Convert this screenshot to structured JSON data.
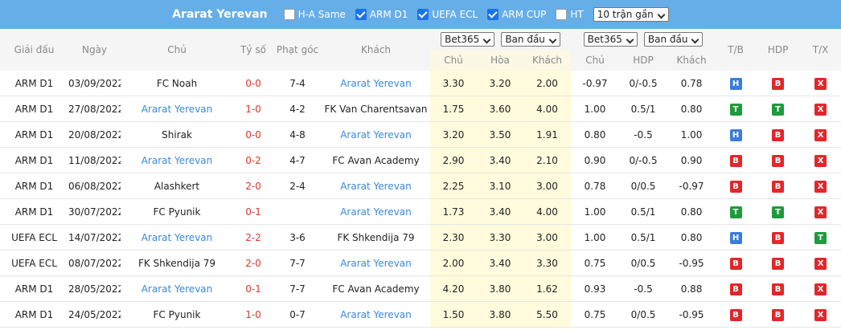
{
  "header": {
    "title": "Ararat Yerevan",
    "filters": [
      {
        "label": "H-A Same",
        "checked": false
      },
      {
        "label": "ARM D1",
        "checked": true
      },
      {
        "label": "UEFA ECL",
        "checked": true
      },
      {
        "label": "ARM CUP",
        "checked": true
      },
      {
        "label": "HT",
        "checked": false
      }
    ],
    "select": "10 trận gần"
  },
  "table": {
    "columns": [
      "Giải đấu",
      "Ngày",
      "Chủ",
      "Tỷ số",
      "Phạt góc",
      "Khách"
    ],
    "odds_groups": [
      {
        "selects": [
          "Bet365",
          "Ban đầu"
        ],
        "columns": [
          "Chủ",
          "Hòa",
          "Khách"
        ]
      },
      {
        "selects": [
          "Bet365",
          "Ban đầu"
        ],
        "columns": [
          "Chủ",
          "HDP",
          "Khách"
        ]
      }
    ],
    "result_columns": [
      "T/B",
      "HDP",
      "T/X"
    ],
    "rows": [
      {
        "cells": [
          "ARM D1",
          "03/09/2022",
          "FC Noah",
          "0-0",
          "7-4",
          "Ararat Yerevan"
        ],
        "odds": [
          "3.30",
          "3.20",
          "2.00"
        ],
        "hdp": [
          "-0.97",
          "0/-0.5",
          "0.78"
        ],
        "results": [
          {
            "label": "H",
            "color": "#3b7dd8"
          },
          {
            "label": "B",
            "color": "#e3262a"
          },
          {
            "label": "X",
            "color": "#e3262a"
          }
        ]
      },
      {
        "cells": [
          "ARM D1",
          "27/08/2022",
          "Ararat Yerevan",
          "1-0",
          "4-2",
          "FK Van Charentsavan"
        ],
        "odds": [
          "1.75",
          "3.60",
          "4.00"
        ],
        "hdp": [
          "1.00",
          "0.5/1",
          "0.80"
        ],
        "results": [
          {
            "label": "T",
            "color": "#1f9a3c"
          },
          {
            "label": "T",
            "color": "#1f9a3c"
          },
          {
            "label": "X",
            "color": "#e3262a"
          }
        ]
      },
      {
        "cells": [
          "ARM D1",
          "20/08/2022",
          "Shirak",
          "0-0",
          "4-8",
          "Ararat Yerevan"
        ],
        "odds": [
          "3.20",
          "3.50",
          "1.91"
        ],
        "hdp": [
          "0.80",
          "-0.5",
          "1.00"
        ],
        "results": [
          {
            "label": "H",
            "color": "#3b7dd8"
          },
          {
            "label": "B",
            "color": "#e3262a"
          },
          {
            "label": "X",
            "color": "#e3262a"
          }
        ]
      },
      {
        "cells": [
          "ARM D1",
          "11/08/2022",
          "Ararat Yerevan",
          "0-2",
          "4-7",
          "FC Avan Academy"
        ],
        "odds": [
          "2.90",
          "3.40",
          "2.10"
        ],
        "hdp": [
          "0.90",
          "0/-0.5",
          "0.90"
        ],
        "results": [
          {
            "label": "B",
            "color": "#e3262a"
          },
          {
            "label": "B",
            "color": "#e3262a"
          },
          {
            "label": "X",
            "color": "#e3262a"
          }
        ]
      },
      {
        "cells": [
          "ARM D1",
          "06/08/2022",
          "Alashkert",
          "2-0",
          "2-4",
          "Ararat Yerevan"
        ],
        "odds": [
          "2.25",
          "3.10",
          "3.00"
        ],
        "hdp": [
          "0.78",
          "0/0.5",
          "-0.97"
        ],
        "results": [
          {
            "label": "B",
            "color": "#e3262a"
          },
          {
            "label": "B",
            "color": "#e3262a"
          },
          {
            "label": "X",
            "color": "#e3262a"
          }
        ]
      },
      {
        "cells": [
          "ARM D1",
          "30/07/2022",
          "FC Pyunik",
          "0-1",
          null,
          "Ararat Yerevan"
        ],
        "odds": [
          "1.73",
          "3.40",
          "4.00"
        ],
        "hdp": [
          "1.00",
          "0.5/1",
          "0.80"
        ],
        "results": [
          {
            "label": "T",
            "color": "#1f9a3c"
          },
          {
            "label": "T",
            "color": "#1f9a3c"
          },
          {
            "label": "X",
            "color": "#e3262a"
          }
        ]
      },
      {
        "cells": [
          "UEFA ECL",
          "14/07/2022",
          "Ararat Yerevan",
          "2-2",
          "3-6",
          "FK Shkendija 79"
        ],
        "odds": [
          "2.30",
          "3.30",
          "3.00"
        ],
        "hdp": [
          "1.00",
          "0.5/1",
          "0.80"
        ],
        "results": [
          {
            "label": "H",
            "color": "#3b7dd8"
          },
          {
            "label": "B",
            "color": "#e3262a"
          },
          {
            "label": "T",
            "color": "#1f9a3c"
          }
        ]
      },
      {
        "cells": [
          "UEFA ECL",
          "08/07/2022",
          "FK Shkendija 79",
          "2-0",
          "7-7",
          "Ararat Yerevan"
        ],
        "odds": [
          "2.00",
          "3.40",
          "3.30"
        ],
        "hdp": [
          "0.75",
          "0/0.5",
          "-0.95"
        ],
        "results": [
          {
            "label": "B",
            "color": "#e3262a"
          },
          {
            "label": "B",
            "color": "#e3262a"
          },
          {
            "label": "X",
            "color": "#e3262a"
          }
        ]
      },
      {
        "cells": [
          "ARM D1",
          "28/05/2022",
          "Ararat Yerevan",
          "0-1",
          "7-7",
          "FC Avan Academy"
        ],
        "odds": [
          "4.20",
          "3.80",
          "1.62"
        ],
        "hdp": [
          "0.93",
          "-0.5",
          "0.88"
        ],
        "results": [
          {
            "label": "B",
            "color": "#e3262a"
          },
          {
            "label": "B",
            "color": "#e3262a"
          },
          {
            "label": "X",
            "color": "#e3262a"
          }
        ]
      },
      {
        "cells": [
          "ARM D1",
          "24/05/2022",
          "FC Pyunik",
          "1-0",
          "0-7",
          "Ararat Yerevan"
        ],
        "odds": [
          "1.50",
          "3.80",
          "5.50"
        ],
        "hdp": [
          "0.75",
          "0/0.5",
          "-0.95"
        ],
        "results": [
          {
            "label": "B",
            "color": "#e3262a"
          },
          {
            "label": "B",
            "color": "#e3262a"
          },
          {
            "label": "X",
            "color": "#e3262a"
          }
        ]
      }
    ]
  }
}
